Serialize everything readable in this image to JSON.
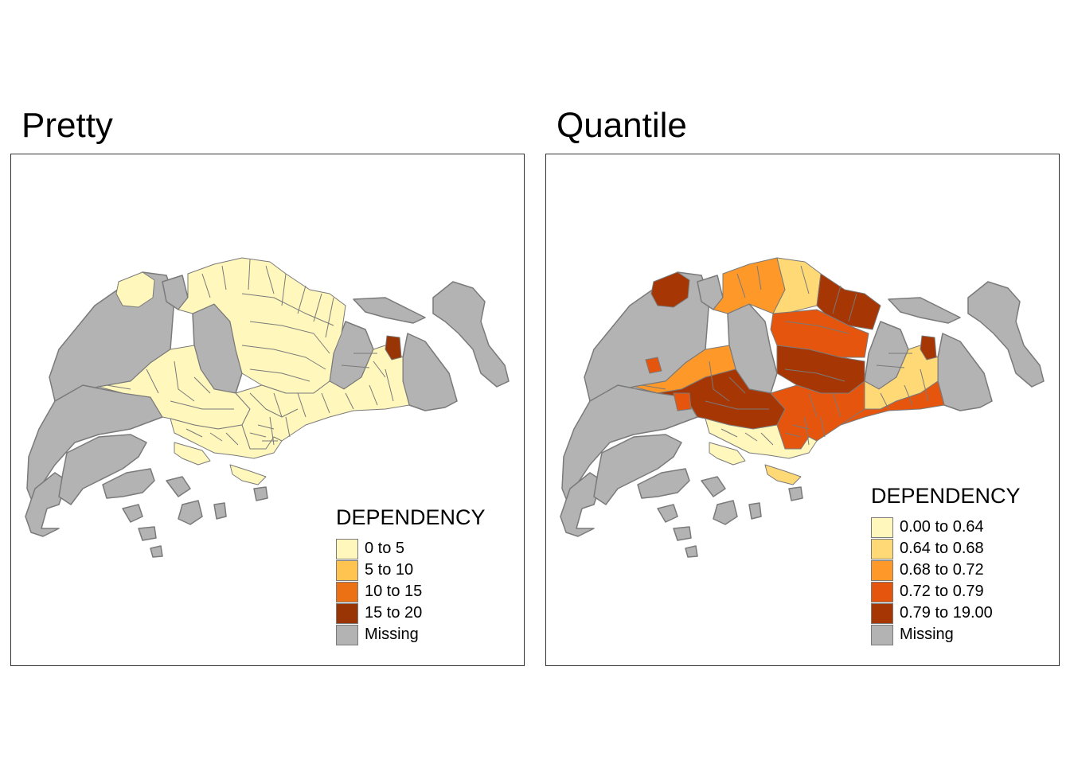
{
  "panels": [
    {
      "title": "Pretty",
      "legend": {
        "title": "DEPENDENCY",
        "items": [
          {
            "label": "0 to 5",
            "color": "#FFF7BC"
          },
          {
            "label": "5 to 10",
            "color": "#FEC44F"
          },
          {
            "label": "10 to 15",
            "color": "#EC7014"
          },
          {
            "label": "15 to 20",
            "color": "#993404"
          },
          {
            "label": "Missing",
            "color": "#B3B3B3"
          }
        ]
      }
    },
    {
      "title": "Quantile",
      "legend": {
        "title": "DEPENDENCY",
        "items": [
          {
            "label": "0.00 to 0.64",
            "color": "#FFF7BC"
          },
          {
            "label": "0.64 to 0.68",
            "color": "#FED976"
          },
          {
            "label": "0.68 to 0.72",
            "color": "#FE9929"
          },
          {
            "label": "0.72 to 0.79",
            "color": "#E6550D"
          },
          {
            "label": "0.79 to 19.00",
            "color": "#A63603"
          },
          {
            "label": "Missing",
            "color": "#B3B3B3"
          }
        ]
      }
    }
  ]
}
